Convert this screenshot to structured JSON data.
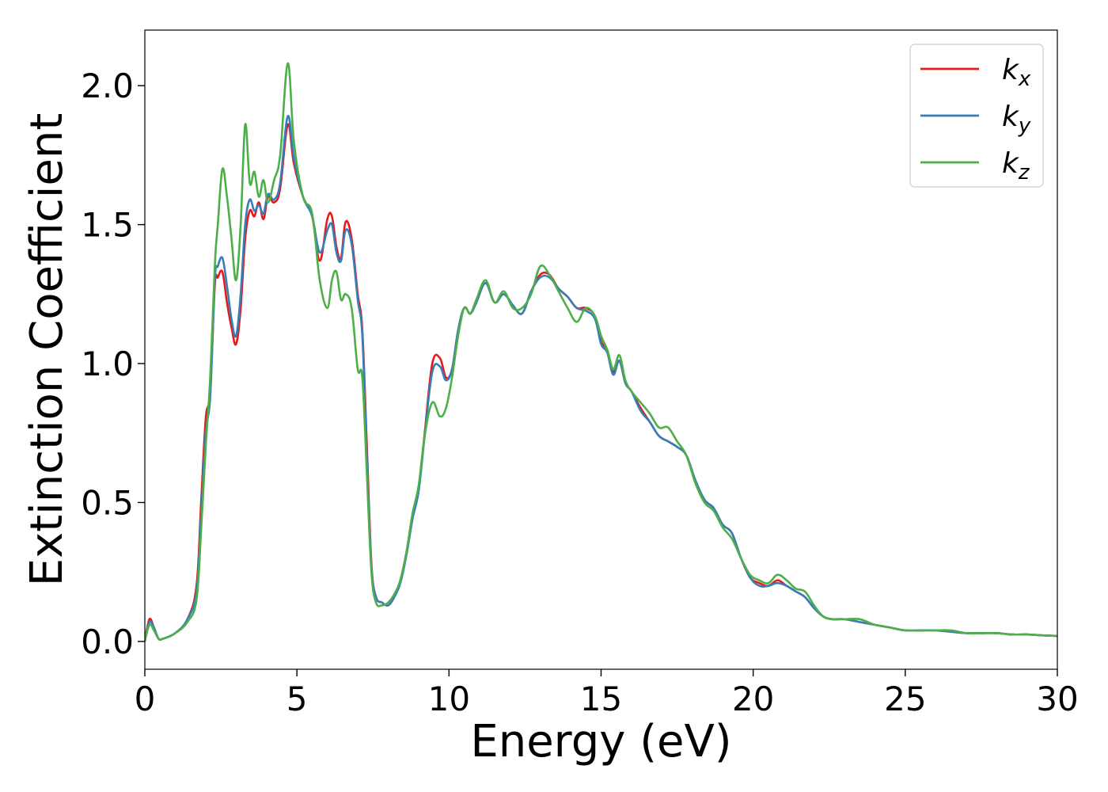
{
  "chart_data": {
    "type": "line",
    "xlabel": "Energy (eV)",
    "ylabel": "Extinction Coefficient",
    "xlim": [
      0,
      30
    ],
    "ylim": [
      -0.1,
      2.2
    ],
    "xticks": [
      0,
      5,
      10,
      15,
      20,
      25,
      30
    ],
    "xtick_labels": [
      "0",
      "5",
      "10",
      "15",
      "20",
      "25",
      "30"
    ],
    "yticks": [
      0.0,
      0.5,
      1.0,
      1.5,
      2.0
    ],
    "ytick_labels": [
      "0.0",
      "0.5",
      "1.0",
      "1.5",
      "2.0"
    ],
    "grid": false,
    "legend_position": "top-right",
    "series": [
      {
        "name": "k_x",
        "label_base": "k",
        "label_sub": "x",
        "color": "#e41a1c",
        "x": [
          0,
          0.15,
          0.3,
          0.45,
          0.6,
          1.0,
          1.4,
          1.7,
          1.85,
          2.0,
          2.15,
          2.3,
          2.4,
          2.55,
          2.7,
          2.85,
          3.0,
          3.15,
          3.3,
          3.45,
          3.6,
          3.75,
          3.9,
          4.05,
          4.25,
          4.45,
          4.7,
          4.9,
          5.2,
          5.5,
          5.75,
          6.0,
          6.15,
          6.3,
          6.45,
          6.6,
          6.8,
          7.0,
          7.15,
          7.3,
          7.45,
          7.6,
          7.8,
          8.0,
          8.2,
          8.4,
          8.6,
          8.8,
          9.0,
          9.2,
          9.45,
          9.7,
          9.9,
          10.1,
          10.3,
          10.5,
          10.7,
          10.9,
          11.2,
          11.5,
          11.8,
          12.1,
          12.4,
          12.7,
          13.0,
          13.3,
          13.6,
          13.9,
          14.2,
          14.5,
          14.8,
          15.0,
          15.2,
          15.4,
          15.6,
          15.8,
          16.0,
          16.3,
          16.6,
          16.9,
          17.2,
          17.5,
          17.8,
          18.1,
          18.4,
          18.7,
          19.0,
          19.3,
          19.6,
          19.9,
          20.2,
          20.5,
          20.8,
          21.1,
          21.4,
          21.7,
          22.0,
          22.3,
          22.6,
          23.0,
          23.5,
          24.0,
          24.5,
          25.0,
          25.5,
          26.0,
          26.5,
          27.0,
          27.5,
          28.0,
          28.5,
          29.0,
          29.5,
          30.0
        ],
        "values": [
          0.0,
          0.08,
          0.05,
          0.01,
          0.01,
          0.03,
          0.08,
          0.2,
          0.5,
          0.8,
          0.9,
          1.28,
          1.31,
          1.33,
          1.22,
          1.13,
          1.07,
          1.2,
          1.45,
          1.55,
          1.53,
          1.58,
          1.52,
          1.6,
          1.58,
          1.63,
          1.86,
          1.72,
          1.6,
          1.53,
          1.37,
          1.52,
          1.53,
          1.42,
          1.38,
          1.51,
          1.45,
          1.25,
          1.12,
          0.7,
          0.28,
          0.16,
          0.14,
          0.13,
          0.16,
          0.22,
          0.32,
          0.45,
          0.55,
          0.75,
          1.0,
          1.02,
          0.95,
          0.98,
          1.12,
          1.2,
          1.18,
          1.22,
          1.29,
          1.22,
          1.25,
          1.21,
          1.18,
          1.26,
          1.32,
          1.32,
          1.27,
          1.24,
          1.2,
          1.2,
          1.17,
          1.08,
          1.05,
          0.97,
          1.01,
          0.93,
          0.9,
          0.84,
          0.79,
          0.74,
          0.72,
          0.7,
          0.67,
          0.58,
          0.51,
          0.48,
          0.42,
          0.39,
          0.3,
          0.23,
          0.21,
          0.2,
          0.22,
          0.2,
          0.18,
          0.16,
          0.12,
          0.09,
          0.08,
          0.08,
          0.07,
          0.06,
          0.05,
          0.04,
          0.04,
          0.04,
          0.035,
          0.03,
          0.03,
          0.03,
          0.025,
          0.025,
          0.022,
          0.02
        ]
      },
      {
        "name": "k_y",
        "label_base": "k",
        "label_sub": "y",
        "color": "#377eb8",
        "x": [
          0,
          0.15,
          0.3,
          0.45,
          0.6,
          1.0,
          1.4,
          1.7,
          1.85,
          2.0,
          2.15,
          2.3,
          2.4,
          2.55,
          2.7,
          2.85,
          3.0,
          3.15,
          3.3,
          3.45,
          3.6,
          3.75,
          3.9,
          4.05,
          4.25,
          4.45,
          4.7,
          4.9,
          5.2,
          5.5,
          5.75,
          6.0,
          6.15,
          6.3,
          6.45,
          6.6,
          6.8,
          7.0,
          7.15,
          7.3,
          7.45,
          7.6,
          7.8,
          8.0,
          8.2,
          8.4,
          8.6,
          8.8,
          9.0,
          9.2,
          9.45,
          9.7,
          9.9,
          10.1,
          10.3,
          10.5,
          10.7,
          10.9,
          11.2,
          11.5,
          11.8,
          12.1,
          12.4,
          12.7,
          13.0,
          13.3,
          13.6,
          13.9,
          14.2,
          14.5,
          14.8,
          15.0,
          15.2,
          15.4,
          15.6,
          15.8,
          16.0,
          16.3,
          16.6,
          16.9,
          17.2,
          17.5,
          17.8,
          18.1,
          18.4,
          18.7,
          19.0,
          19.3,
          19.6,
          19.9,
          20.2,
          20.5,
          20.8,
          21.1,
          21.4,
          21.7,
          22.0,
          22.3,
          22.6,
          23.0,
          23.5,
          24.0,
          24.5,
          25.0,
          25.5,
          26.0,
          26.5,
          27.0,
          27.5,
          28.0,
          28.5,
          29.0,
          29.5,
          30.0
        ],
        "values": [
          0.0,
          0.07,
          0.05,
          0.01,
          0.01,
          0.03,
          0.08,
          0.18,
          0.45,
          0.75,
          0.88,
          1.3,
          1.35,
          1.38,
          1.28,
          1.16,
          1.1,
          1.25,
          1.5,
          1.59,
          1.55,
          1.57,
          1.54,
          1.61,
          1.59,
          1.65,
          1.89,
          1.74,
          1.6,
          1.53,
          1.4,
          1.48,
          1.5,
          1.4,
          1.37,
          1.48,
          1.43,
          1.23,
          1.1,
          0.65,
          0.27,
          0.16,
          0.14,
          0.13,
          0.16,
          0.21,
          0.31,
          0.44,
          0.54,
          0.74,
          0.97,
          0.99,
          0.94,
          0.98,
          1.12,
          1.2,
          1.18,
          1.22,
          1.29,
          1.22,
          1.25,
          1.21,
          1.18,
          1.26,
          1.31,
          1.31,
          1.27,
          1.24,
          1.2,
          1.19,
          1.16,
          1.07,
          1.04,
          0.96,
          1.01,
          0.93,
          0.9,
          0.83,
          0.79,
          0.74,
          0.72,
          0.7,
          0.67,
          0.58,
          0.51,
          0.48,
          0.42,
          0.39,
          0.3,
          0.23,
          0.2,
          0.2,
          0.21,
          0.2,
          0.18,
          0.16,
          0.12,
          0.09,
          0.08,
          0.08,
          0.07,
          0.06,
          0.05,
          0.04,
          0.04,
          0.04,
          0.035,
          0.03,
          0.03,
          0.03,
          0.025,
          0.025,
          0.022,
          0.02
        ]
      },
      {
        "name": "k_z",
        "label_base": "k",
        "label_sub": "z",
        "color": "#4daf4a",
        "x": [
          0,
          0.15,
          0.3,
          0.45,
          0.6,
          1.0,
          1.4,
          1.7,
          1.85,
          2.0,
          2.15,
          2.3,
          2.4,
          2.55,
          2.7,
          2.85,
          3.0,
          3.15,
          3.3,
          3.45,
          3.6,
          3.75,
          3.9,
          4.05,
          4.25,
          4.45,
          4.7,
          4.9,
          5.2,
          5.5,
          5.75,
          6.0,
          6.15,
          6.3,
          6.45,
          6.6,
          6.8,
          7.0,
          7.15,
          7.3,
          7.45,
          7.6,
          7.8,
          8.0,
          8.2,
          8.4,
          8.6,
          8.8,
          9.0,
          9.2,
          9.45,
          9.7,
          9.9,
          10.1,
          10.3,
          10.5,
          10.7,
          10.9,
          11.2,
          11.5,
          11.8,
          12.1,
          12.4,
          12.7,
          13.0,
          13.3,
          13.6,
          13.9,
          14.2,
          14.5,
          14.8,
          15.0,
          15.2,
          15.4,
          15.6,
          15.8,
          16.0,
          16.3,
          16.6,
          16.9,
          17.2,
          17.5,
          17.8,
          18.1,
          18.4,
          18.7,
          19.0,
          19.3,
          19.6,
          19.9,
          20.2,
          20.5,
          20.8,
          21.1,
          21.4,
          21.7,
          22.0,
          22.3,
          22.6,
          23.0,
          23.5,
          24.0,
          24.5,
          25.0,
          25.5,
          26.0,
          26.5,
          27.0,
          27.5,
          28.0,
          28.5,
          29.0,
          29.5,
          30.0
        ],
        "values": [
          0.0,
          0.06,
          0.04,
          0.01,
          0.01,
          0.03,
          0.07,
          0.15,
          0.4,
          0.7,
          0.95,
          1.35,
          1.5,
          1.7,
          1.6,
          1.45,
          1.3,
          1.5,
          1.86,
          1.65,
          1.69,
          1.6,
          1.66,
          1.58,
          1.66,
          1.75,
          2.08,
          1.8,
          1.6,
          1.54,
          1.3,
          1.2,
          1.3,
          1.33,
          1.23,
          1.25,
          1.2,
          0.98,
          0.95,
          0.6,
          0.25,
          0.14,
          0.13,
          0.14,
          0.17,
          0.22,
          0.32,
          0.46,
          0.56,
          0.74,
          0.86,
          0.81,
          0.84,
          0.95,
          1.1,
          1.2,
          1.18,
          1.23,
          1.3,
          1.22,
          1.26,
          1.2,
          1.2,
          1.25,
          1.35,
          1.32,
          1.26,
          1.2,
          1.15,
          1.2,
          1.17,
          1.1,
          1.05,
          0.98,
          1.03,
          0.94,
          0.9,
          0.86,
          0.82,
          0.77,
          0.77,
          0.72,
          0.67,
          0.57,
          0.5,
          0.47,
          0.41,
          0.37,
          0.3,
          0.24,
          0.22,
          0.21,
          0.24,
          0.22,
          0.19,
          0.18,
          0.13,
          0.09,
          0.08,
          0.08,
          0.08,
          0.06,
          0.05,
          0.04,
          0.04,
          0.04,
          0.04,
          0.03,
          0.03,
          0.03,
          0.025,
          0.025,
          0.022,
          0.02
        ]
      }
    ]
  }
}
